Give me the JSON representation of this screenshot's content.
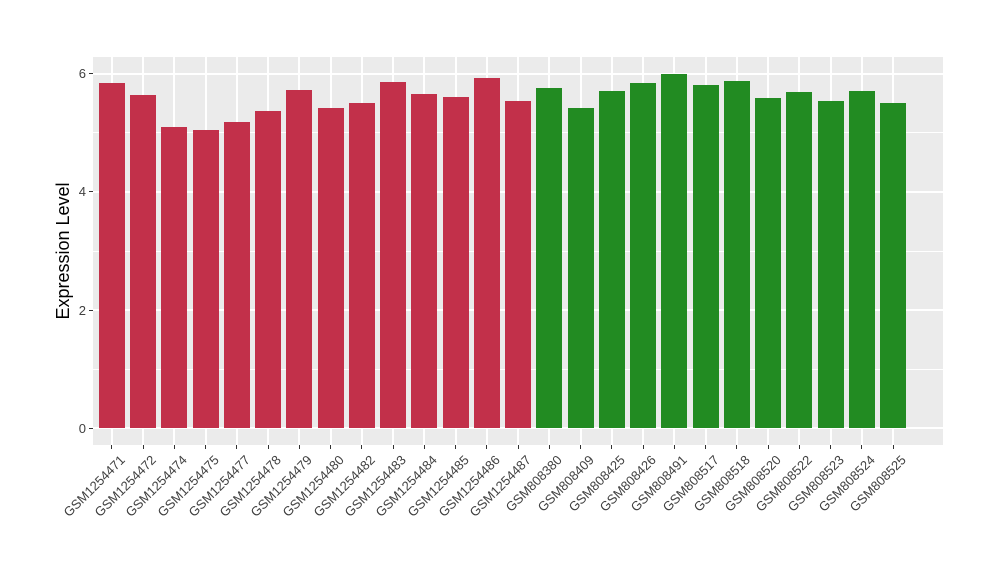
{
  "figure": {
    "background": "#FFFFFF"
  },
  "chart_data": {
    "type": "bar",
    "title": "",
    "xlabel": "",
    "ylabel": "Expression Level",
    "y_ticks": [
      0,
      2,
      4,
      6
    ],
    "y_minor_ticks": [
      1,
      3,
      5
    ],
    "ylim": [
      -0.28,
      6.28
    ],
    "grid": "on",
    "legend": "none",
    "panel_bg": "#EBEBEB",
    "grid_color": "#FFFFFF",
    "axis_text_color": "#404040",
    "group_colors": {
      "GSM125xxxx": "#C2304A",
      "GSM808xxx": "#228B22"
    },
    "bars": [
      {
        "label": "GSM1254471",
        "value": 5.84,
        "color": "#C2304A"
      },
      {
        "label": "GSM1254472",
        "value": 5.64,
        "color": "#C2304A"
      },
      {
        "label": "GSM1254474",
        "value": 5.1,
        "color": "#C2304A"
      },
      {
        "label": "GSM1254475",
        "value": 5.05,
        "color": "#C2304A"
      },
      {
        "label": "GSM1254477",
        "value": 5.18,
        "color": "#C2304A"
      },
      {
        "label": "GSM1254478",
        "value": 5.36,
        "color": "#C2304A"
      },
      {
        "label": "GSM1254479",
        "value": 5.72,
        "color": "#C2304A"
      },
      {
        "label": "GSM1254480",
        "value": 5.41,
        "color": "#C2304A"
      },
      {
        "label": "GSM1254482",
        "value": 5.51,
        "color": "#C2304A"
      },
      {
        "label": "GSM1254483",
        "value": 5.85,
        "color": "#C2304A"
      },
      {
        "label": "GSM1254484",
        "value": 5.66,
        "color": "#C2304A"
      },
      {
        "label": "GSM1254485",
        "value": 5.6,
        "color": "#C2304A"
      },
      {
        "label": "GSM1254486",
        "value": 5.93,
        "color": "#C2304A"
      },
      {
        "label": "GSM1254487",
        "value": 5.54,
        "color": "#C2304A"
      },
      {
        "label": "GSM808380",
        "value": 5.76,
        "color": "#228B22"
      },
      {
        "label": "GSM808409",
        "value": 5.42,
        "color": "#228B22"
      },
      {
        "label": "GSM808425",
        "value": 5.7,
        "color": "#228B22"
      },
      {
        "label": "GSM808426",
        "value": 5.84,
        "color": "#228B22"
      },
      {
        "label": "GSM808491",
        "value": 5.99,
        "color": "#228B22"
      },
      {
        "label": "GSM808517",
        "value": 5.8,
        "color": "#228B22"
      },
      {
        "label": "GSM808518",
        "value": 5.87,
        "color": "#228B22"
      },
      {
        "label": "GSM808520",
        "value": 5.59,
        "color": "#228B22"
      },
      {
        "label": "GSM808522",
        "value": 5.68,
        "color": "#228B22"
      },
      {
        "label": "GSM808523",
        "value": 5.54,
        "color": "#228B22"
      },
      {
        "label": "GSM808524",
        "value": 5.71,
        "color": "#228B22"
      },
      {
        "label": "GSM808525",
        "value": 5.5,
        "color": "#228B22"
      }
    ]
  }
}
